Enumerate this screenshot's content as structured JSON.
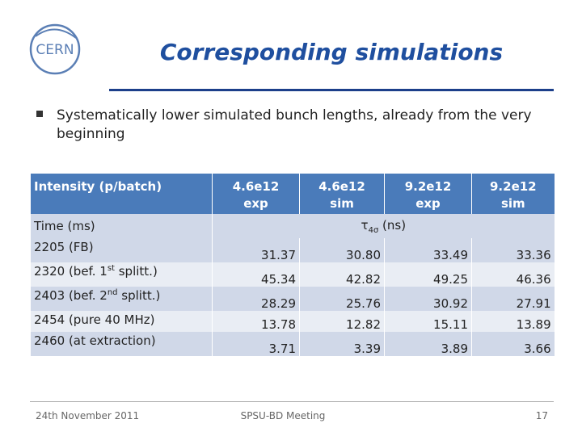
{
  "header": {
    "logo": "CERN",
    "title": "Corresponding simulations"
  },
  "bullets": [
    "Systematically lower simulated bunch lengths, already from the very beginning"
  ],
  "table": {
    "header": [
      "Intensity (p/batch)",
      "4.6e12 exp",
      "4.6e12 sim",
      "9.2e12 exp",
      "9.2e12 sim"
    ],
    "subheader": {
      "first": "Time (ms)",
      "unit": [
        "τ",
        "4σ",
        " (ns)"
      ]
    },
    "rows": [
      [
        [
          "2205 (FB)"
        ],
        "31.37",
        "30.80",
        "33.49",
        "33.36"
      ],
      [
        [
          "2320 (bef. 1",
          "st",
          " splitt.)"
        ],
        "45.34",
        "42.82",
        "49.25",
        "46.36"
      ],
      [
        [
          "2403 (bef. 2",
          "nd",
          " splitt.)"
        ],
        "28.29",
        "25.76",
        "30.92",
        "27.91"
      ],
      [
        [
          "2454 (pure 40 MHz)"
        ],
        "13.78",
        "12.82",
        "15.11",
        "13.89"
      ],
      [
        [
          "2460 (at extraction)"
        ],
        "3.71",
        "3.39",
        "3.89",
        "3.66"
      ]
    ]
  },
  "footer": {
    "date": "24th November 2011",
    "meeting": "SPSU-BD Meeting",
    "page": "17"
  }
}
